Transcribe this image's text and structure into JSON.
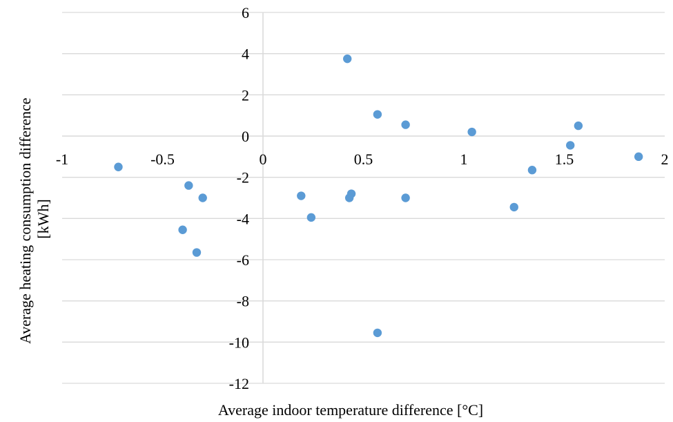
{
  "chart_data": {
    "type": "scatter",
    "title": "",
    "xlabel": "Average indoor temperature difference [°C]",
    "ylabel_line1": "Average heating consumption difference",
    "ylabel_line2": "[kWh]",
    "xlim": [
      -1,
      2
    ],
    "ylim": [
      -12,
      6
    ],
    "x_ticks": [
      -1,
      -0.5,
      0,
      0.5,
      1,
      1.5,
      2
    ],
    "x_tick_labels": [
      "-1",
      "-0.5",
      "0",
      "0.5",
      "1",
      "1.5",
      "2"
    ],
    "y_ticks": [
      6,
      4,
      2,
      0,
      -2,
      -4,
      -6,
      -8,
      -10,
      -12
    ],
    "y_tick_labels": [
      "6",
      "4",
      "2",
      "0",
      "-2",
      "-4",
      "-6",
      "-8",
      "-10",
      "-12"
    ],
    "grid": true,
    "marker_color": "#5b9bd5",
    "gridline_color": "#d9d9d9",
    "points": [
      {
        "x": -0.72,
        "y": -1.5
      },
      {
        "x": -0.37,
        "y": -2.4
      },
      {
        "x": -0.3,
        "y": -3.0
      },
      {
        "x": -0.4,
        "y": -4.55
      },
      {
        "x": -0.33,
        "y": -5.65
      },
      {
        "x": 0.19,
        "y": -2.9
      },
      {
        "x": 0.24,
        "y": -3.95
      },
      {
        "x": 0.42,
        "y": 3.75
      },
      {
        "x": 0.44,
        "y": -2.8
      },
      {
        "x": 0.43,
        "y": -3.0
      },
      {
        "x": 0.57,
        "y": 1.05
      },
      {
        "x": 0.71,
        "y": 0.55
      },
      {
        "x": 0.71,
        "y": -3.0
      },
      {
        "x": 0.57,
        "y": -9.55
      },
      {
        "x": 1.04,
        "y": 0.2
      },
      {
        "x": 1.25,
        "y": -3.45
      },
      {
        "x": 1.34,
        "y": -1.65
      },
      {
        "x": 1.53,
        "y": -0.45
      },
      {
        "x": 1.57,
        "y": 0.5
      },
      {
        "x": 1.87,
        "y": -1.0
      }
    ]
  }
}
